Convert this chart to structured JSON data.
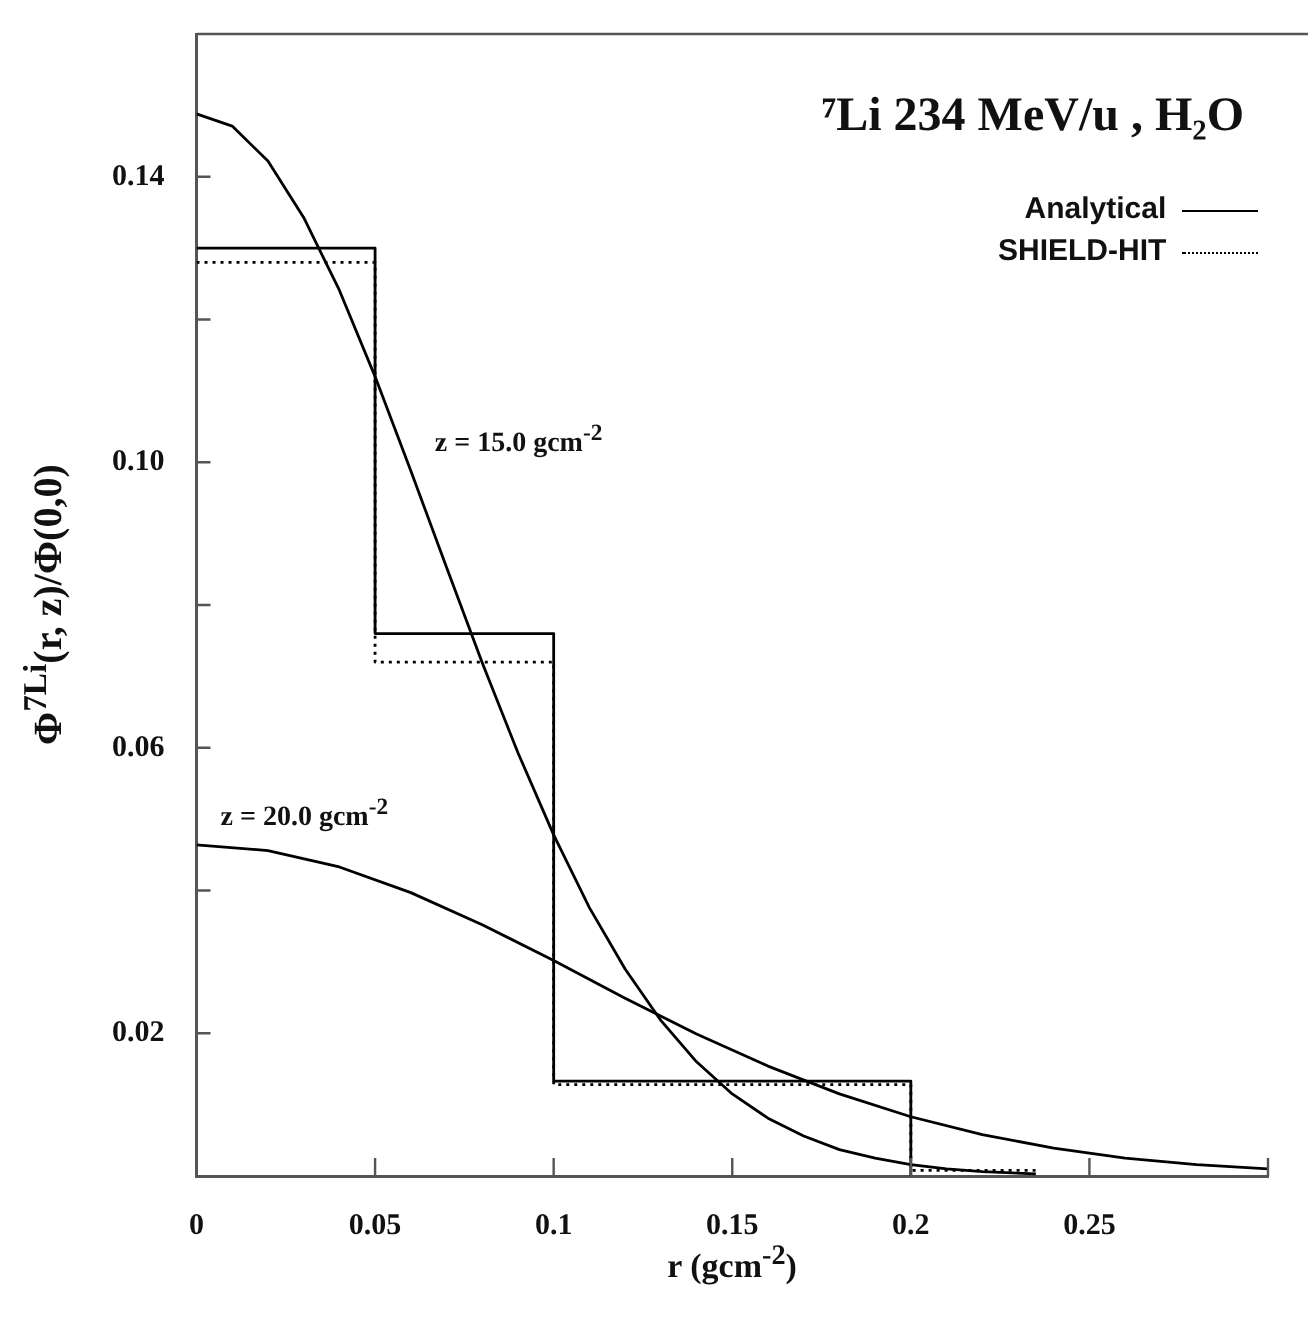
{
  "chart_data": {
    "type": "line",
    "title": "⁷Li 234 MeV/u , H₂O",
    "xlabel": "r (gcm$^{-2}$)",
    "ylabel": "Φ$^{7Li}$(r, z)/Φ(0,0)",
    "xlim": [
      0,
      0.3
    ],
    "xticks": [
      0,
      0.05,
      0.1,
      0.15,
      0.2,
      0.25,
      {
        "value": 0.3,
        "label": null
      }
    ],
    "ylim": [
      0,
      0.16
    ],
    "yticks": [
      {
        "value": 0.02,
        "label": "0.02"
      },
      {
        "value": 0.04,
        "label": null
      },
      {
        "value": 0.06,
        "label": "0.06"
      },
      {
        "value": 0.08,
        "label": null
      },
      {
        "value": 0.1,
        "label": "0.10"
      },
      {
        "value": 0.12,
        "label": null
      },
      {
        "value": 0.14,
        "label": "0.14"
      }
    ],
    "legend": "top right",
    "marker": "none",
    "series": [
      {
        "type": "step",
        "name": "Analytical",
        "color": "#000000",
        "line_style": "solid",
        "x": [
          0,
          0.05,
          0.1,
          0.2
        ],
        "values": [
          0.13,
          0.076,
          0.0133,
          0
        ]
      },
      {
        "type": "step",
        "name": "SHIELD-HIT",
        "color": "#000000",
        "line_style": "dotted",
        "x": [
          0,
          0.05,
          0.1,
          0.2,
          0.235
        ],
        "values": [
          0.128,
          0.072,
          0.0128,
          0.0008,
          0.0008
        ]
      },
      {
        "type": "line",
        "color": "#000000",
        "line_style": "solid",
        "x": [
          0,
          0.01,
          0.02,
          0.03,
          0.04,
          0.05,
          0.06,
          0.07,
          0.08,
          0.09,
          0.1,
          0.11,
          0.12,
          0.13,
          0.14,
          0.15,
          0.16,
          0.17,
          0.18,
          0.19,
          0.2,
          0.21,
          0.22,
          0.235
        ],
        "values": [
          0.1488,
          0.1471,
          0.1422,
          0.1343,
          0.1241,
          0.112,
          0.0988,
          0.0853,
          0.0719,
          0.0593,
          0.0478,
          0.0376,
          0.029,
          0.0218,
          0.016,
          0.0115,
          0.0081,
          0.0056,
          0.0037,
          0.0025,
          0.0016,
          0.001,
          0.0006,
          0.0003
        ]
      },
      {
        "type": "line",
        "color": "#000000",
        "line_style": "solid",
        "x": [
          0,
          0.02,
          0.04,
          0.06,
          0.08,
          0.1,
          0.12,
          0.14,
          0.16,
          0.18,
          0.2,
          0.22,
          0.24,
          0.26,
          0.28,
          0.3
        ],
        "values": [
          0.0464,
          0.0456,
          0.0433,
          0.0397,
          0.0352,
          0.0302,
          0.0249,
          0.0199,
          0.0154,
          0.0115,
          0.0083,
          0.0058,
          0.0039,
          0.0025,
          0.0016,
          0.001
        ]
      }
    ],
    "annotations": [
      {
        "text": "z = 15.0 gcm$^{-2}$",
        "x": 0.06,
        "y": 0.0988
      },
      {
        "text": "z = 20.0 gcm$^{-2}$",
        "x": 0,
        "y": 0.0464
      }
    ]
  }
}
